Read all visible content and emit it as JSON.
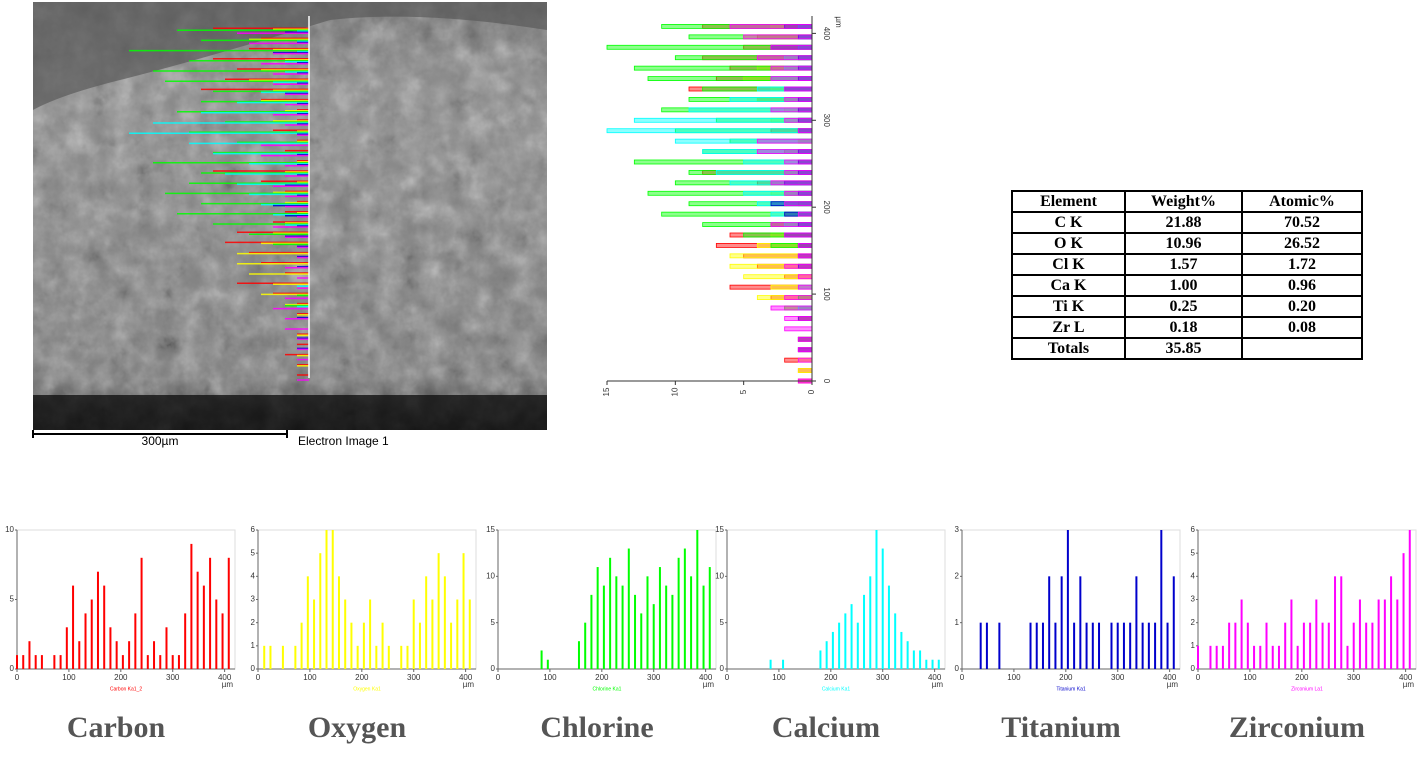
{
  "image": {
    "scale_label": "300µm",
    "caption": "Electron Image 1"
  },
  "table": {
    "header": [
      "Element",
      "Weight%",
      "Atomic%"
    ],
    "rows": [
      [
        "C K",
        "21.88",
        "70.52"
      ],
      [
        "O K",
        "10.96",
        "26.52"
      ],
      [
        "Cl K",
        "1.57",
        "1.72"
      ],
      [
        "Ca K",
        "1.00",
        "0.96"
      ],
      [
        "Ti K",
        "0.25",
        "0.20"
      ],
      [
        "Zr L",
        "0.18",
        "0.08"
      ],
      [
        "Totals",
        "35.85"
      ]
    ]
  },
  "chart_data": [
    {
      "type": "bar",
      "title": "Carbon",
      "legend": "Carbon Ka1_2",
      "color": "#ff0000",
      "x_unit": "µm",
      "xlim": [
        0,
        420
      ],
      "xticks": [
        0,
        100,
        200,
        300,
        400
      ],
      "ylim": [
        0,
        10
      ],
      "yticks": [
        0,
        5,
        10
      ],
      "x": [
        0,
        12,
        24,
        36,
        48,
        60,
        72,
        84,
        96,
        108,
        120,
        132,
        144,
        156,
        168,
        180,
        192,
        204,
        216,
        228,
        240,
        252,
        264,
        276,
        288,
        300,
        312,
        324,
        336,
        348,
        360,
        372,
        384,
        396,
        408
      ],
      "values": [
        1,
        1,
        2,
        1,
        1,
        0,
        1,
        1,
        3,
        6,
        2,
        4,
        5,
        7,
        6,
        3,
        2,
        1,
        2,
        4,
        8,
        1,
        2,
        1,
        3,
        1,
        1,
        4,
        9,
        7,
        6,
        8,
        5,
        4,
        8
      ]
    },
    {
      "type": "bar",
      "title": "Oxygen",
      "legend": "Oxygen Ka1",
      "color": "#ffff00",
      "x_unit": "µm",
      "xlim": [
        0,
        420
      ],
      "xticks": [
        0,
        100,
        200,
        300,
        400
      ],
      "ylim": [
        0,
        6
      ],
      "yticks": [
        0,
        1,
        2,
        3,
        4,
        5,
        6
      ],
      "x": [
        0,
        12,
        24,
        36,
        48,
        60,
        72,
        84,
        96,
        108,
        120,
        132,
        144,
        156,
        168,
        180,
        192,
        204,
        216,
        228,
        240,
        252,
        264,
        276,
        288,
        300,
        312,
        324,
        336,
        348,
        360,
        372,
        384,
        396,
        408
      ],
      "values": [
        0,
        1,
        1,
        0,
        1,
        0,
        1,
        2,
        4,
        3,
        5,
        6,
        6,
        4,
        3,
        2,
        1,
        2,
        3,
        1,
        2,
        1,
        0,
        1,
        1,
        3,
        2,
        4,
        3,
        5,
        4,
        2,
        3,
        5,
        3
      ]
    },
    {
      "type": "bar",
      "title": "Chlorine",
      "legend": "Chlorine Ka1",
      "color": "#00ff00",
      "x_unit": "µm",
      "xlim": [
        0,
        420
      ],
      "xticks": [
        0,
        100,
        200,
        300,
        400
      ],
      "ylim": [
        0,
        15
      ],
      "yticks": [
        0,
        5,
        10,
        15
      ],
      "x": [
        0,
        12,
        24,
        36,
        48,
        60,
        72,
        84,
        96,
        108,
        120,
        132,
        144,
        156,
        168,
        180,
        192,
        204,
        216,
        228,
        240,
        252,
        264,
        276,
        288,
        300,
        312,
        324,
        336,
        348,
        360,
        372,
        384,
        396,
        408
      ],
      "values": [
        0,
        0,
        0,
        0,
        0,
        0,
        0,
        2,
        1,
        0,
        0,
        0,
        0,
        3,
        5,
        8,
        11,
        9,
        12,
        10,
        9,
        13,
        8,
        6,
        10,
        7,
        11,
        9,
        8,
        12,
        13,
        10,
        15,
        9,
        11
      ]
    },
    {
      "type": "bar",
      "title": "Calcium",
      "legend": "Calcium Ka1",
      "color": "#00ffff",
      "x_unit": "µm",
      "xlim": [
        0,
        420
      ],
      "xticks": [
        0,
        100,
        200,
        300,
        400
      ],
      "ylim": [
        0,
        15
      ],
      "yticks": [
        0,
        5,
        10,
        15
      ],
      "x": [
        0,
        12,
        24,
        36,
        48,
        60,
        72,
        84,
        96,
        108,
        120,
        132,
        144,
        156,
        168,
        180,
        192,
        204,
        216,
        228,
        240,
        252,
        264,
        276,
        288,
        300,
        312,
        324,
        336,
        348,
        360,
        372,
        384,
        396,
        408
      ],
      "values": [
        0,
        0,
        0,
        0,
        0,
        0,
        0,
        1,
        0,
        1,
        0,
        0,
        0,
        0,
        0,
        2,
        3,
        4,
        5,
        6,
        7,
        5,
        8,
        10,
        15,
        13,
        9,
        6,
        4,
        3,
        2,
        2,
        1,
        1,
        1
      ]
    },
    {
      "type": "bar",
      "title": "Titanium",
      "legend": "Titanium Ka1",
      "color": "#0000cc",
      "x_unit": "µm",
      "xlim": [
        0,
        420
      ],
      "xticks": [
        0,
        100,
        200,
        300,
        400
      ],
      "ylim": [
        0,
        3
      ],
      "yticks": [
        0,
        1,
        2,
        3
      ],
      "x": [
        0,
        12,
        24,
        36,
        48,
        60,
        72,
        84,
        96,
        108,
        120,
        132,
        144,
        156,
        168,
        180,
        192,
        204,
        216,
        228,
        240,
        252,
        264,
        276,
        288,
        300,
        312,
        324,
        336,
        348,
        360,
        372,
        384,
        396,
        408
      ],
      "values": [
        0,
        0,
        0,
        1,
        1,
        0,
        1,
        0,
        0,
        0,
        0,
        1,
        1,
        1,
        2,
        1,
        2,
        3,
        1,
        2,
        1,
        1,
        1,
        0,
        1,
        1,
        1,
        1,
        2,
        1,
        1,
        1,
        3,
        1,
        2
      ]
    },
    {
      "type": "bar",
      "title": "Zirconium",
      "legend": "Zirconium La1",
      "color": "#ff00ff",
      "x_unit": "µm",
      "xlim": [
        0,
        420
      ],
      "xticks": [
        0,
        100,
        200,
        300,
        400
      ],
      "ylim": [
        0,
        6
      ],
      "yticks": [
        0,
        1,
        2,
        3,
        4,
        5,
        6
      ],
      "x": [
        0,
        12,
        24,
        36,
        48,
        60,
        72,
        84,
        96,
        108,
        120,
        132,
        144,
        156,
        168,
        180,
        192,
        204,
        216,
        228,
        240,
        252,
        264,
        276,
        288,
        300,
        312,
        324,
        336,
        348,
        360,
        372,
        384,
        396,
        408
      ],
      "values": [
        1,
        0,
        1,
        1,
        1,
        2,
        2,
        3,
        2,
        1,
        1,
        2,
        1,
        1,
        2,
        3,
        1,
        2,
        2,
        3,
        2,
        2,
        4,
        4,
        1,
        2,
        3,
        2,
        2,
        3,
        3,
        4,
        3,
        5,
        6
      ]
    },
    {
      "type": "profile",
      "y_unit": "µm",
      "reversed_x": true,
      "xlim": [
        0,
        15
      ],
      "xticks": [
        0,
        5,
        10,
        15
      ],
      "ylim": [
        0,
        420
      ],
      "yticks": [
        0,
        100,
        200,
        300,
        400
      ]
    }
  ]
}
